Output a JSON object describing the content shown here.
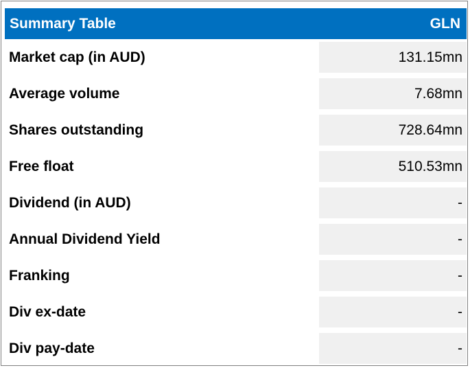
{
  "table": {
    "title": "Summary Table",
    "ticker": "GLN",
    "rows": [
      {
        "label": "Market cap (in AUD)",
        "value": "131.15mn"
      },
      {
        "label": "Average volume",
        "value": "7.68mn"
      },
      {
        "label": "Shares outstanding",
        "value": "728.64mn"
      },
      {
        "label": "Free float",
        "value": "510.53mn"
      },
      {
        "label": "Dividend (in AUD)",
        "value": "-"
      },
      {
        "label": "Annual Dividend Yield",
        "value": "-"
      },
      {
        "label": "Franking",
        "value": "-"
      },
      {
        "label": "Div ex-date",
        "value": "-"
      },
      {
        "label": "Div pay-date",
        "value": "-"
      }
    ]
  },
  "colors": {
    "header_bg": "#0070c0",
    "header_text": "#ffffff",
    "value_cell_bg": "#f0f0f0",
    "border": "#7f7f7f"
  }
}
